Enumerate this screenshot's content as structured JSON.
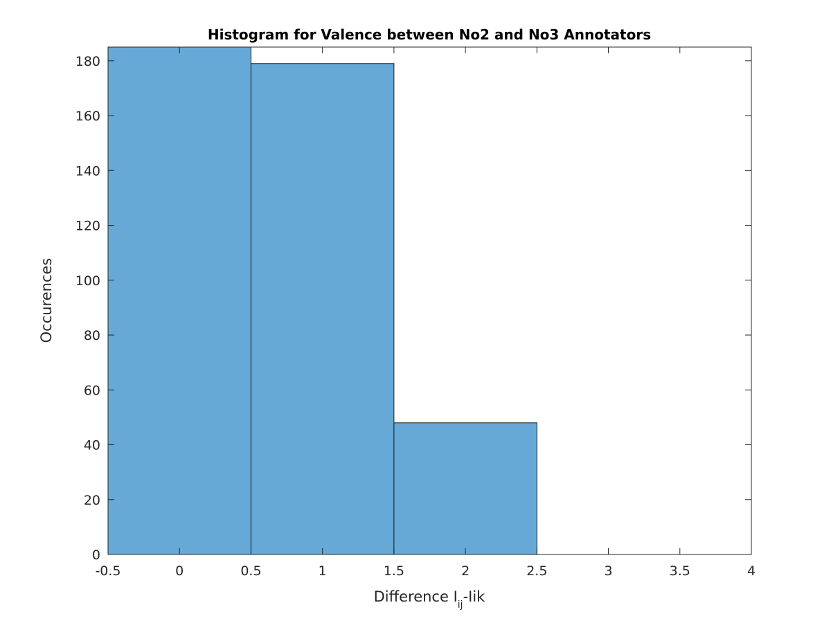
{
  "chart_data": {
    "type": "bar",
    "title": "Histogram for Valence between No2 and No3 Annotators",
    "xlabel": {
      "prefix": "Difference I",
      "subscript": "ij",
      "suffix": "-Iik"
    },
    "ylabel": "Occurences",
    "bin_edges": [
      -0.5,
      0.5,
      1.5,
      2.5
    ],
    "values": [
      185,
      179,
      48
    ],
    "xlim": [
      -0.5,
      4
    ],
    "ylim": [
      0,
      185
    ],
    "xticks": [
      -0.5,
      0,
      0.5,
      1,
      1.5,
      2,
      2.5,
      3,
      3.5,
      4
    ],
    "xtick_labels": [
      "-0.5",
      "0",
      "0.5",
      "1",
      "1.5",
      "2",
      "2.5",
      "3",
      "3.5",
      "4"
    ],
    "yticks": [
      0,
      20,
      40,
      60,
      80,
      100,
      120,
      140,
      160,
      180
    ],
    "ytick_labels": [
      "0",
      "20",
      "40",
      "60",
      "80",
      "100",
      "120",
      "140",
      "160",
      "180"
    ],
    "grid": false,
    "bar_color": "#66a9d6",
    "edge_color": "#1a1a1a"
  }
}
